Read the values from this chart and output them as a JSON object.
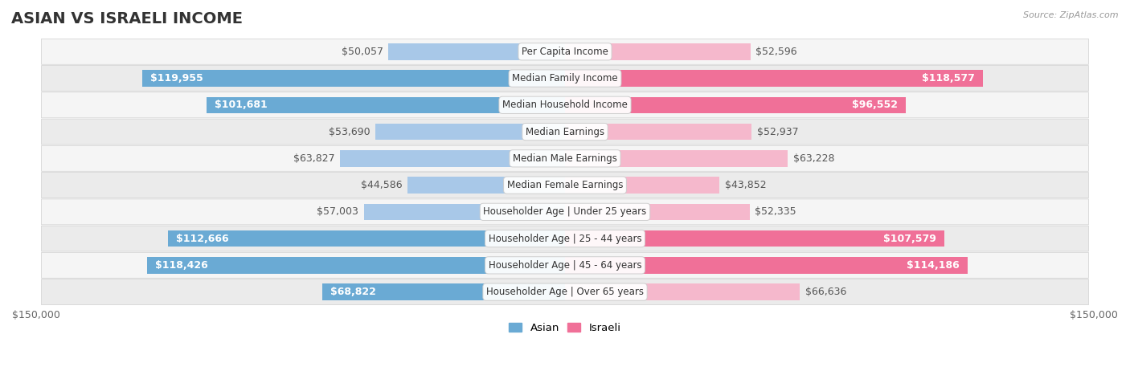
{
  "title": "ASIAN VS ISRAELI INCOME",
  "source": "Source: ZipAtlas.com",
  "categories": [
    "Per Capita Income",
    "Median Family Income",
    "Median Household Income",
    "Median Earnings",
    "Median Male Earnings",
    "Median Female Earnings",
    "Householder Age | Under 25 years",
    "Householder Age | 25 - 44 years",
    "Householder Age | 45 - 64 years",
    "Householder Age | Over 65 years"
  ],
  "asian_values": [
    50057,
    119955,
    101681,
    53690,
    63827,
    44586,
    57003,
    112666,
    118426,
    68822
  ],
  "israeli_values": [
    52596,
    118577,
    96552,
    52937,
    63228,
    43852,
    52335,
    107579,
    114186,
    66636
  ],
  "asian_labels": [
    "$50,057",
    "$119,955",
    "$101,681",
    "$53,690",
    "$63,827",
    "$44,586",
    "$57,003",
    "$112,666",
    "$118,426",
    "$68,822"
  ],
  "israeli_labels": [
    "$52,596",
    "$118,577",
    "$96,552",
    "$52,937",
    "$63,228",
    "$43,852",
    "$52,335",
    "$107,579",
    "$114,186",
    "$66,636"
  ],
  "max_value": 150000,
  "asian_color_light": "#a8c8e8",
  "asian_color_dark": "#6aaad4",
  "israeli_color_light": "#f5b8cc",
  "israeli_color_dark": "#f07098",
  "row_bg_odd": "#f5f5f5",
  "row_bg_even": "#ebebeb",
  "bar_height": 0.62,
  "title_fontsize": 14,
  "label_fontsize": 9,
  "category_fontsize": 8.5,
  "axis_fontsize": 9,
  "threshold_pct": 0.45
}
